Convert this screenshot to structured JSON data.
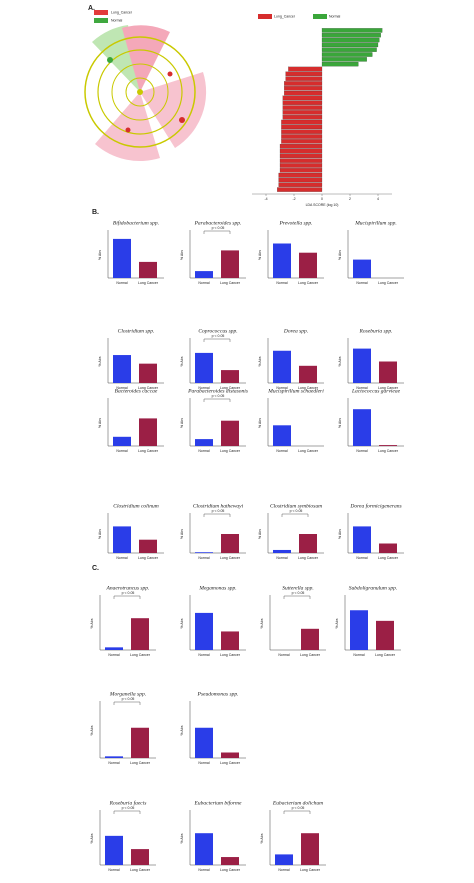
{
  "panels": [
    "A.",
    "B.",
    "C."
  ],
  "cladogram": {
    "legend": [
      {
        "name": "Lung_Cancer",
        "color": "#e23b3b"
      },
      {
        "name": "Normal",
        "color": "#3fa83f"
      }
    ]
  },
  "chart_data": [
    {
      "type": "hbar",
      "xlabel": "LDA SCORE (log 10)",
      "xlim": [
        -5,
        5
      ],
      "xticks": [
        -4,
        -2,
        0,
        2,
        4
      ],
      "categories": [
        null,
        null,
        null,
        null,
        null,
        null,
        null,
        null,
        null,
        null,
        null,
        null,
        null,
        null,
        null,
        null,
        null,
        null,
        null,
        null,
        null,
        null,
        null,
        null,
        null,
        null,
        null,
        null,
        null,
        null,
        null,
        null,
        null,
        null
      ],
      "series": [
        {
          "name": "Lung_Cancer",
          "color": "#d62d2d",
          "values": [
            null,
            null,
            null,
            null,
            null,
            null,
            null,
            null,
            -2.4,
            -2.6,
            -2.6,
            -2.7,
            -2.7,
            -2.7,
            -2.8,
            -2.8,
            -2.8,
            -2.8,
            -2.8,
            -2.9,
            -2.9,
            -2.9,
            -2.9,
            -2.9,
            -3.0,
            -3.0,
            -3.0,
            -3.0,
            -3.0,
            -3.0,
            -3.1,
            -3.1,
            -3.1,
            -3.2
          ]
        },
        {
          "name": "Normal",
          "color": "#3aa63a",
          "values": [
            4.3,
            4.2,
            4.1,
            4.0,
            3.9,
            3.6,
            3.2,
            2.6,
            null,
            null,
            null,
            null,
            null,
            null,
            null,
            null,
            null,
            null,
            null,
            null,
            null,
            null,
            null,
            null,
            null,
            null,
            null,
            null,
            null,
            null,
            null,
            null,
            null,
            null
          ]
        }
      ]
    },
    {
      "type": "bar",
      "title": "Bifidobacterium spp.",
      "ylabel": "% Abs",
      "categories": [
        "Normal",
        "Lung Cancer"
      ],
      "values": [
        0.85,
        0.35
      ],
      "ylim": [
        0,
        1
      ]
    },
    {
      "type": "bar",
      "title": "Parabacteroides spp.",
      "ylabel": "% Abs",
      "categories": [
        "Normal",
        "Lung Cancer"
      ],
      "values": [
        0.15,
        0.6
      ],
      "ylim": [
        0,
        1
      ],
      "annotation": "p < 0.05"
    },
    {
      "type": "bar",
      "title": "Prevotella spp.",
      "ylabel": "% Abs",
      "categories": [
        "Normal",
        "Lung Cancer"
      ],
      "values": [
        0.75,
        0.55
      ],
      "ylim": [
        0,
        1
      ]
    },
    {
      "type": "bar",
      "title": "Mucispirillum spp.",
      "ylabel": "% Abs",
      "categories": [
        "Normal",
        "Lung Cancer"
      ],
      "values": [
        0.4,
        0
      ],
      "ylim": [
        0,
        1
      ]
    },
    {
      "type": "bar",
      "title": "Clostridium spp.",
      "ylabel": "% Abs",
      "categories": [
        "Normal",
        "Lung Cancer"
      ],
      "values": [
        0.65,
        0.45
      ],
      "ylim": [
        0,
        1
      ]
    },
    {
      "type": "bar",
      "title": "Coprococcus spp.",
      "ylabel": "% Abs",
      "categories": [
        "Normal",
        "Lung Cancer"
      ],
      "values": [
        0.7,
        0.3
      ],
      "ylim": [
        0,
        1
      ],
      "annotation": "p < 0.05"
    },
    {
      "type": "bar",
      "title": "Dorea spp.",
      "ylabel": "% Abs",
      "categories": [
        "Normal",
        "Lung Cancer"
      ],
      "values": [
        0.75,
        0.4
      ],
      "ylim": [
        0,
        1
      ]
    },
    {
      "type": "bar",
      "title": "Roseburia spp.",
      "ylabel": "% Abs",
      "categories": [
        "Normal",
        "Lung Cancer"
      ],
      "values": [
        0.8,
        0.5
      ],
      "ylim": [
        0,
        1
      ]
    },
    {
      "type": "bar",
      "title": "Bacteroides caccae",
      "ylabel": "% Abs",
      "categories": [
        "Normal",
        "Lung Cancer"
      ],
      "values": [
        0.2,
        0.6
      ],
      "ylim": [
        0,
        1
      ]
    },
    {
      "type": "bar",
      "title": "Parabacteroides distasonis",
      "ylabel": "% Abs",
      "categories": [
        "Normal",
        "Lung Cancer"
      ],
      "values": [
        0.15,
        0.55
      ],
      "ylim": [
        0,
        1
      ],
      "annotation": "p < 0.05"
    },
    {
      "type": "bar",
      "title": "Mucispirillum schaedleri",
      "ylabel": "% Abs",
      "categories": [
        "Normal",
        "Lung Cancer"
      ],
      "values": [
        0.45,
        0
      ],
      "ylim": [
        0,
        1
      ]
    },
    {
      "type": "bar",
      "title": "Lactococcus garvieae",
      "ylabel": "% Abs",
      "categories": [
        "Normal",
        "Lung Cancer"
      ],
      "values": [
        0.8,
        0.02
      ],
      "ylim": [
        0,
        1
      ]
    },
    {
      "type": "bar",
      "title": "Clostridium colinum",
      "ylabel": "% Abs",
      "categories": [
        "Normal",
        "Lung Cancer"
      ],
      "values": [
        0.7,
        0.35
      ],
      "ylim": [
        0,
        1
      ]
    },
    {
      "type": "bar",
      "title": "Clostridium hathewayi",
      "ylabel": "% Abs",
      "categories": [
        "Normal",
        "Lung Cancer"
      ],
      "values": [
        0.02,
        0.5
      ],
      "ylim": [
        0,
        1
      ],
      "annotation": "p < 0.05"
    },
    {
      "type": "bar",
      "title": "Clostridium symbiosum",
      "ylabel": "% Abs",
      "categories": [
        "Normal",
        "Lung Cancer"
      ],
      "values": [
        0.08,
        0.5
      ],
      "ylim": [
        0,
        1
      ],
      "annotation": "p < 0.05"
    },
    {
      "type": "bar",
      "title": "Dorea formicigenerans",
      "ylabel": "% Abs",
      "categories": [
        "Normal",
        "Lung Cancer"
      ],
      "values": [
        0.7,
        0.25
      ],
      "ylim": [
        0,
        1
      ]
    },
    {
      "type": "bar",
      "title": "Anaerotruncus spp.",
      "ylabel": "% Abs",
      "categories": [
        "Normal",
        "Lung Cancer"
      ],
      "values": [
        0.05,
        0.6
      ],
      "ylim": [
        0,
        1
      ],
      "annotation": "p < 0.05"
    },
    {
      "type": "bar",
      "title": "Megamonas spp.",
      "ylabel": "% Abs",
      "categories": [
        "Normal",
        "Lung Cancer"
      ],
      "values": [
        0.7,
        0.35
      ],
      "ylim": [
        0,
        1
      ]
    },
    {
      "type": "bar",
      "title": "Sutterella spp.",
      "ylabel": "% Abs",
      "categories": [
        "Normal",
        "Lung Cancer"
      ],
      "values": [
        0,
        0.4
      ],
      "ylim": [
        0,
        1
      ],
      "annotation": "p < 0.05"
    },
    {
      "type": "bar",
      "title": "Subdoligranulum spp.",
      "ylabel": "% Abs",
      "categories": [
        "Normal",
        "Lung Cancer"
      ],
      "values": [
        0.75,
        0.55
      ],
      "ylim": [
        0,
        1
      ]
    },
    {
      "type": "bar",
      "title": "Morganella spp.",
      "ylabel": "% Abs",
      "categories": [
        "Normal",
        "Lung Cancer"
      ],
      "values": [
        0.03,
        0.55
      ],
      "ylim": [
        0,
        1
      ],
      "annotation": "p < 0.05"
    },
    {
      "type": "bar",
      "title": "Pseudomonas spp.",
      "ylabel": "% Abs",
      "categories": [
        "Normal",
        "Lung Cancer"
      ],
      "values": [
        0.55,
        0.1
      ],
      "ylim": [
        0,
        1
      ]
    },
    {
      "type": "bar",
      "title": "Roseburia faecis",
      "ylabel": "% Abs",
      "categories": [
        "Normal",
        "Lung Cancer"
      ],
      "values": [
        0.55,
        0.3
      ],
      "ylim": [
        0,
        1
      ],
      "annotation": "p < 0.05"
    },
    {
      "type": "bar",
      "title": "Eubacterium biforme",
      "ylabel": "% Abs",
      "categories": [
        "Normal",
        "Lung Cancer"
      ],
      "values": [
        0.6,
        0.15
      ],
      "ylim": [
        0,
        1
      ]
    },
    {
      "type": "bar",
      "title": "Eubacterium dolichum",
      "ylabel": "% Abs",
      "categories": [
        "Normal",
        "Lung Cancer"
      ],
      "values": [
        0.2,
        0.6
      ],
      "ylim": [
        0,
        1
      ],
      "annotation": "p < 0.05"
    }
  ]
}
